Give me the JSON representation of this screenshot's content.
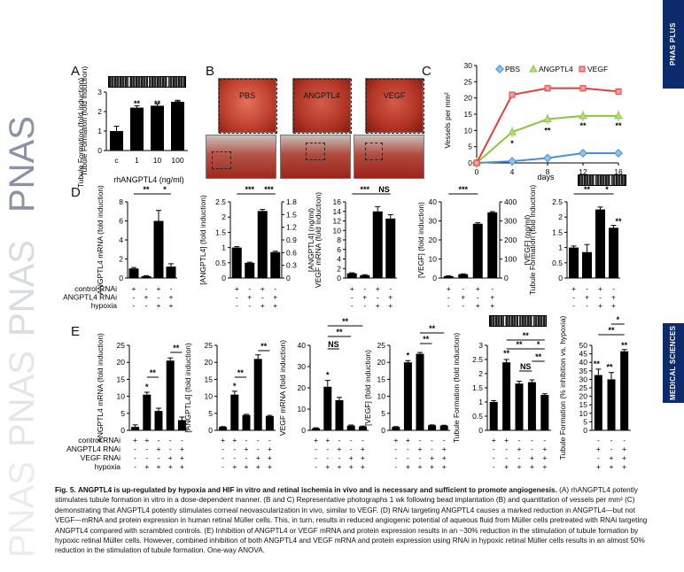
{
  "journal": {
    "wordmark": "PNAS",
    "repeat": [
      "PNAS",
      "PNAS",
      "PNAS",
      "PNAS"
    ]
  },
  "sidebar": {
    "top_tab": "PNAS PLUS",
    "mid_tab": "MEDICAL SCIENCES"
  },
  "panels": {
    "A": {
      "letter": "A",
      "ylabel": "Tubule Formation (fold induction)",
      "xlabel": "rhANGPTL4 (ng/ml)"
    },
    "B": {
      "letter": "B",
      "photo_labels": [
        "PBS",
        "ANGPTL4",
        "VEGF"
      ]
    },
    "C": {
      "letter": "C",
      "ylabel": "Vessels per mm²",
      "xlabel": "days"
    },
    "D": {
      "letter": "D"
    },
    "E": {
      "letter": "E"
    }
  },
  "sig": {
    "s1": "*",
    "s2": "**",
    "s3": "***",
    "ns": "NS"
  },
  "chart_data": [
    {
      "id": "A",
      "type": "bar",
      "title": "",
      "xlabel": "rhANGPTL4 (ng/ml)",
      "ylabel": "Tubule Formation (fold induction)",
      "categories": [
        "c",
        "1",
        "10",
        "100"
      ],
      "values": [
        1.0,
        2.2,
        2.3,
        2.5
      ],
      "errors": [
        0.25,
        0.1,
        0.1,
        0.08
      ],
      "sig": [
        "",
        "**",
        "**",
        "**"
      ],
      "ylim": [
        0,
        3
      ],
      "yticks": [
        0,
        1,
        2,
        3
      ]
    },
    {
      "id": "C",
      "type": "line",
      "xlabel": "days",
      "ylabel": "Vessels per mm²",
      "ylim": [
        0,
        30
      ],
      "xlim": [
        0,
        16
      ],
      "yticks": [
        0,
        5,
        10,
        15,
        20,
        25,
        30
      ],
      "xticks": [
        0,
        4,
        8,
        12,
        16
      ],
      "series": [
        {
          "name": "PBS",
          "color": "#4a8fd0",
          "x": [
            0,
            4,
            8,
            12,
            16
          ],
          "y": [
            0,
            0.5,
            1.5,
            3,
            3
          ]
        },
        {
          "name": "ANGPTL4",
          "color": "#8cc63f",
          "x": [
            0,
            4,
            8,
            12,
            16
          ],
          "y": [
            0,
            9.5,
            13.5,
            14.5,
            14.5
          ]
        },
        {
          "name": "VEGF",
          "color": "#e04040",
          "x": [
            0,
            4,
            8,
            12,
            16
          ],
          "y": [
            0,
            21,
            23,
            23,
            22
          ]
        }
      ],
      "annotations": [
        "*",
        "**",
        "**",
        "**"
      ]
    },
    {
      "id": "D1",
      "type": "bar",
      "ylabel": "ANGPTL4 mRNA (fold induction)",
      "values": [
        1.0,
        0.2,
        6.0,
        1.2
      ],
      "errors": [
        0.1,
        0.05,
        1.1,
        0.3
      ],
      "ylim": [
        0,
        8
      ],
      "yticks": [
        0,
        2,
        4,
        6,
        8
      ]
    },
    {
      "id": "D2",
      "type": "bar",
      "ylabel": "[ANGPTL4] (fold induction)",
      "y2label": "[ANGPTL4] (ng/ml)",
      "values": [
        1.0,
        0.5,
        2.2,
        0.85
      ],
      "errors": [
        0.03,
        0.02,
        0.05,
        0.03
      ],
      "ylim": [
        0,
        2.5
      ],
      "yticks": [
        0,
        0.5,
        1,
        1.5,
        2,
        2.5
      ],
      "y2ticks": [
        "0",
        "0.3",
        "0.6",
        "0.9",
        "1.2",
        "1.5",
        "1.8"
      ]
    },
    {
      "id": "D3",
      "type": "bar",
      "ylabel": "VEGF mRNA (fold induction)",
      "values": [
        1.0,
        0.6,
        14.0,
        12.5
      ],
      "errors": [
        0.1,
        0.1,
        1.0,
        0.8
      ],
      "ylim": [
        0,
        16
      ],
      "yticks": [
        0,
        2,
        4,
        6,
        8,
        10,
        12,
        14,
        16
      ]
    },
    {
      "id": "D4",
      "type": "bar",
      "ylabel": "[VEGF] (fold induction)",
      "y2label": "[VEGF] (pg/ml)",
      "values": [
        1.0,
        2.0,
        28.5,
        34.5
      ],
      "errors": [
        0.2,
        0.2,
        0.5,
        0.4
      ],
      "ylim": [
        0,
        40
      ],
      "yticks": [
        0,
        10,
        20,
        30,
        40
      ],
      "y2ticks": [
        "0",
        "100",
        "200",
        "300",
        "400"
      ]
    },
    {
      "id": "D5",
      "type": "bar",
      "ylabel": "Tubule Formation (fold induction)",
      "values": [
        1.0,
        0.85,
        2.25,
        1.65
      ],
      "errors": [
        0.05,
        0.25,
        0.08,
        0.08
      ],
      "ylim": [
        0,
        2.5
      ],
      "yticks": [
        0,
        0.5,
        1,
        1.5,
        2,
        2.5
      ]
    },
    {
      "id": "E1",
      "type": "bar",
      "ylabel": "ANGPTL4 mRNA (fold induction)",
      "values": [
        1.0,
        10.5,
        5.7,
        20.5,
        3.0
      ],
      "errors": [
        0.6,
        0.7,
        0.8,
        0.8,
        0.9
      ],
      "ylim": [
        0,
        25
      ],
      "yticks": [
        0,
        5,
        10,
        15,
        20,
        25
      ]
    },
    {
      "id": "E2",
      "type": "bar",
      "ylabel": "[ANGPTL4] (fold induction)",
      "values": [
        1.0,
        10.5,
        4.5,
        21.0,
        4.2
      ],
      "errors": [
        0.1,
        1.0,
        0.2,
        1.2,
        0.2
      ],
      "ylim": [
        0,
        25
      ],
      "yticks": [
        0,
        5,
        10,
        15,
        20,
        25
      ]
    },
    {
      "id": "E3",
      "type": "bar",
      "ylabel": "VEGF mRNA (fold induction)",
      "values": [
        1.0,
        20.5,
        14.2,
        2.2,
        1.8
      ],
      "errors": [
        0.2,
        3.0,
        1.3,
        0.3,
        0.2
      ],
      "ylim": [
        0,
        40
      ],
      "yticks": [
        0,
        10,
        20,
        30,
        40
      ]
    },
    {
      "id": "E4",
      "type": "bar",
      "ylabel": "[VEGF] (fold induction)",
      "values": [
        1.0,
        20.0,
        22.5,
        1.5,
        1.4
      ],
      "errors": [
        0.1,
        0.5,
        0.4,
        0.1,
        0.1
      ],
      "ylim": [
        0,
        25
      ],
      "yticks": [
        0,
        5,
        10,
        15,
        20,
        25
      ]
    },
    {
      "id": "E5",
      "type": "bar",
      "ylabel": "Tubule Formation (fold induction)",
      "values": [
        1.0,
        2.4,
        1.65,
        1.7,
        1.25
      ],
      "errors": [
        0.05,
        0.1,
        0.08,
        0.08,
        0.04
      ],
      "ylim": [
        0,
        3
      ],
      "yticks": [
        0,
        0.5,
        1,
        1.5,
        2,
        2.5,
        3
      ]
    },
    {
      "id": "E6",
      "type": "bar",
      "ylabel": "Tubule Formation (% inhibition vs. hypoxia)",
      "values": [
        32.5,
        30.0,
        46.5
      ],
      "errors": [
        3.5,
        4.0,
        1.0
      ],
      "ylim": [
        0,
        50
      ],
      "yticks": [
        0,
        5,
        10,
        15,
        20,
        25,
        30,
        35,
        40,
        45,
        50
      ]
    }
  ],
  "conditions": {
    "D": {
      "labels": [
        "control RNAi",
        "ANGPTL4 RNAi",
        "hypoxia"
      ],
      "rows": [
        [
          "+",
          "-",
          "+",
          "-"
        ],
        [
          "-",
          "+",
          "-",
          "+"
        ],
        [
          "-",
          "-",
          "+",
          "+"
        ]
      ]
    },
    "E": {
      "labels": [
        "control RNAi",
        "ANGPTL4 RNAi",
        "VEGF RNAi",
        "hypoxia"
      ],
      "rows": [
        [
          "+",
          "+",
          "-",
          "-",
          "-"
        ],
        [
          "-",
          "-",
          "+",
          "-",
          "+"
        ],
        [
          "-",
          "-",
          "-",
          "+",
          "+"
        ],
        [
          "-",
          "+",
          "+",
          "+",
          "+"
        ]
      ],
      "rows6": [
        [
          "-",
          "-",
          "-"
        ],
        [
          "+",
          "-",
          "+"
        ],
        [
          "-",
          "+",
          "+"
        ],
        [
          "+",
          "+",
          "+"
        ]
      ]
    }
  },
  "caption": {
    "lead": "Fig. 5.",
    "bold_title": "ANGPTL4 is up-regulated by hypoxia and HIF in vitro and retinal ischemia in vivo and is necessary and sufficient to promote angiogenesis.",
    "body": "(A) rhANGPTL4 potently stimulates tubule formation in vitro in a dose-dependent manner. (B and C) Representative photographs 1 wk following bead implantation (B) and quantitation of vessels per mm² (C) demonstrating that ANGPTL4 potently stimulates corneal neovascularization in vivo, similar to VEGF. (D) RNAi targeting ANGPTL4 causes a marked reduction in ANGPTL4—but not VEGF—mRNA and protein expression in human retinal Müller cells. This, in turn, results in reduced angiogenic potential of aqueous fluid from Müller cells pretreated with RNAi targeting ANGPTL4 compared with scrambled controls. (E) Inhibition of ANGPTL4 or VEGF mRNA and protein expression results in an ~30% reduction in the stimulation of tubule formation by hypoxic retinal Müller cells. However, combined inhibition of both ANGPTL4 and VEGF mRNA and protein expression using RNAi in hypoxic retinal Müller cells results in an almost 50% reduction in the stimulation of tubule formation. One-way ANOVA."
  }
}
